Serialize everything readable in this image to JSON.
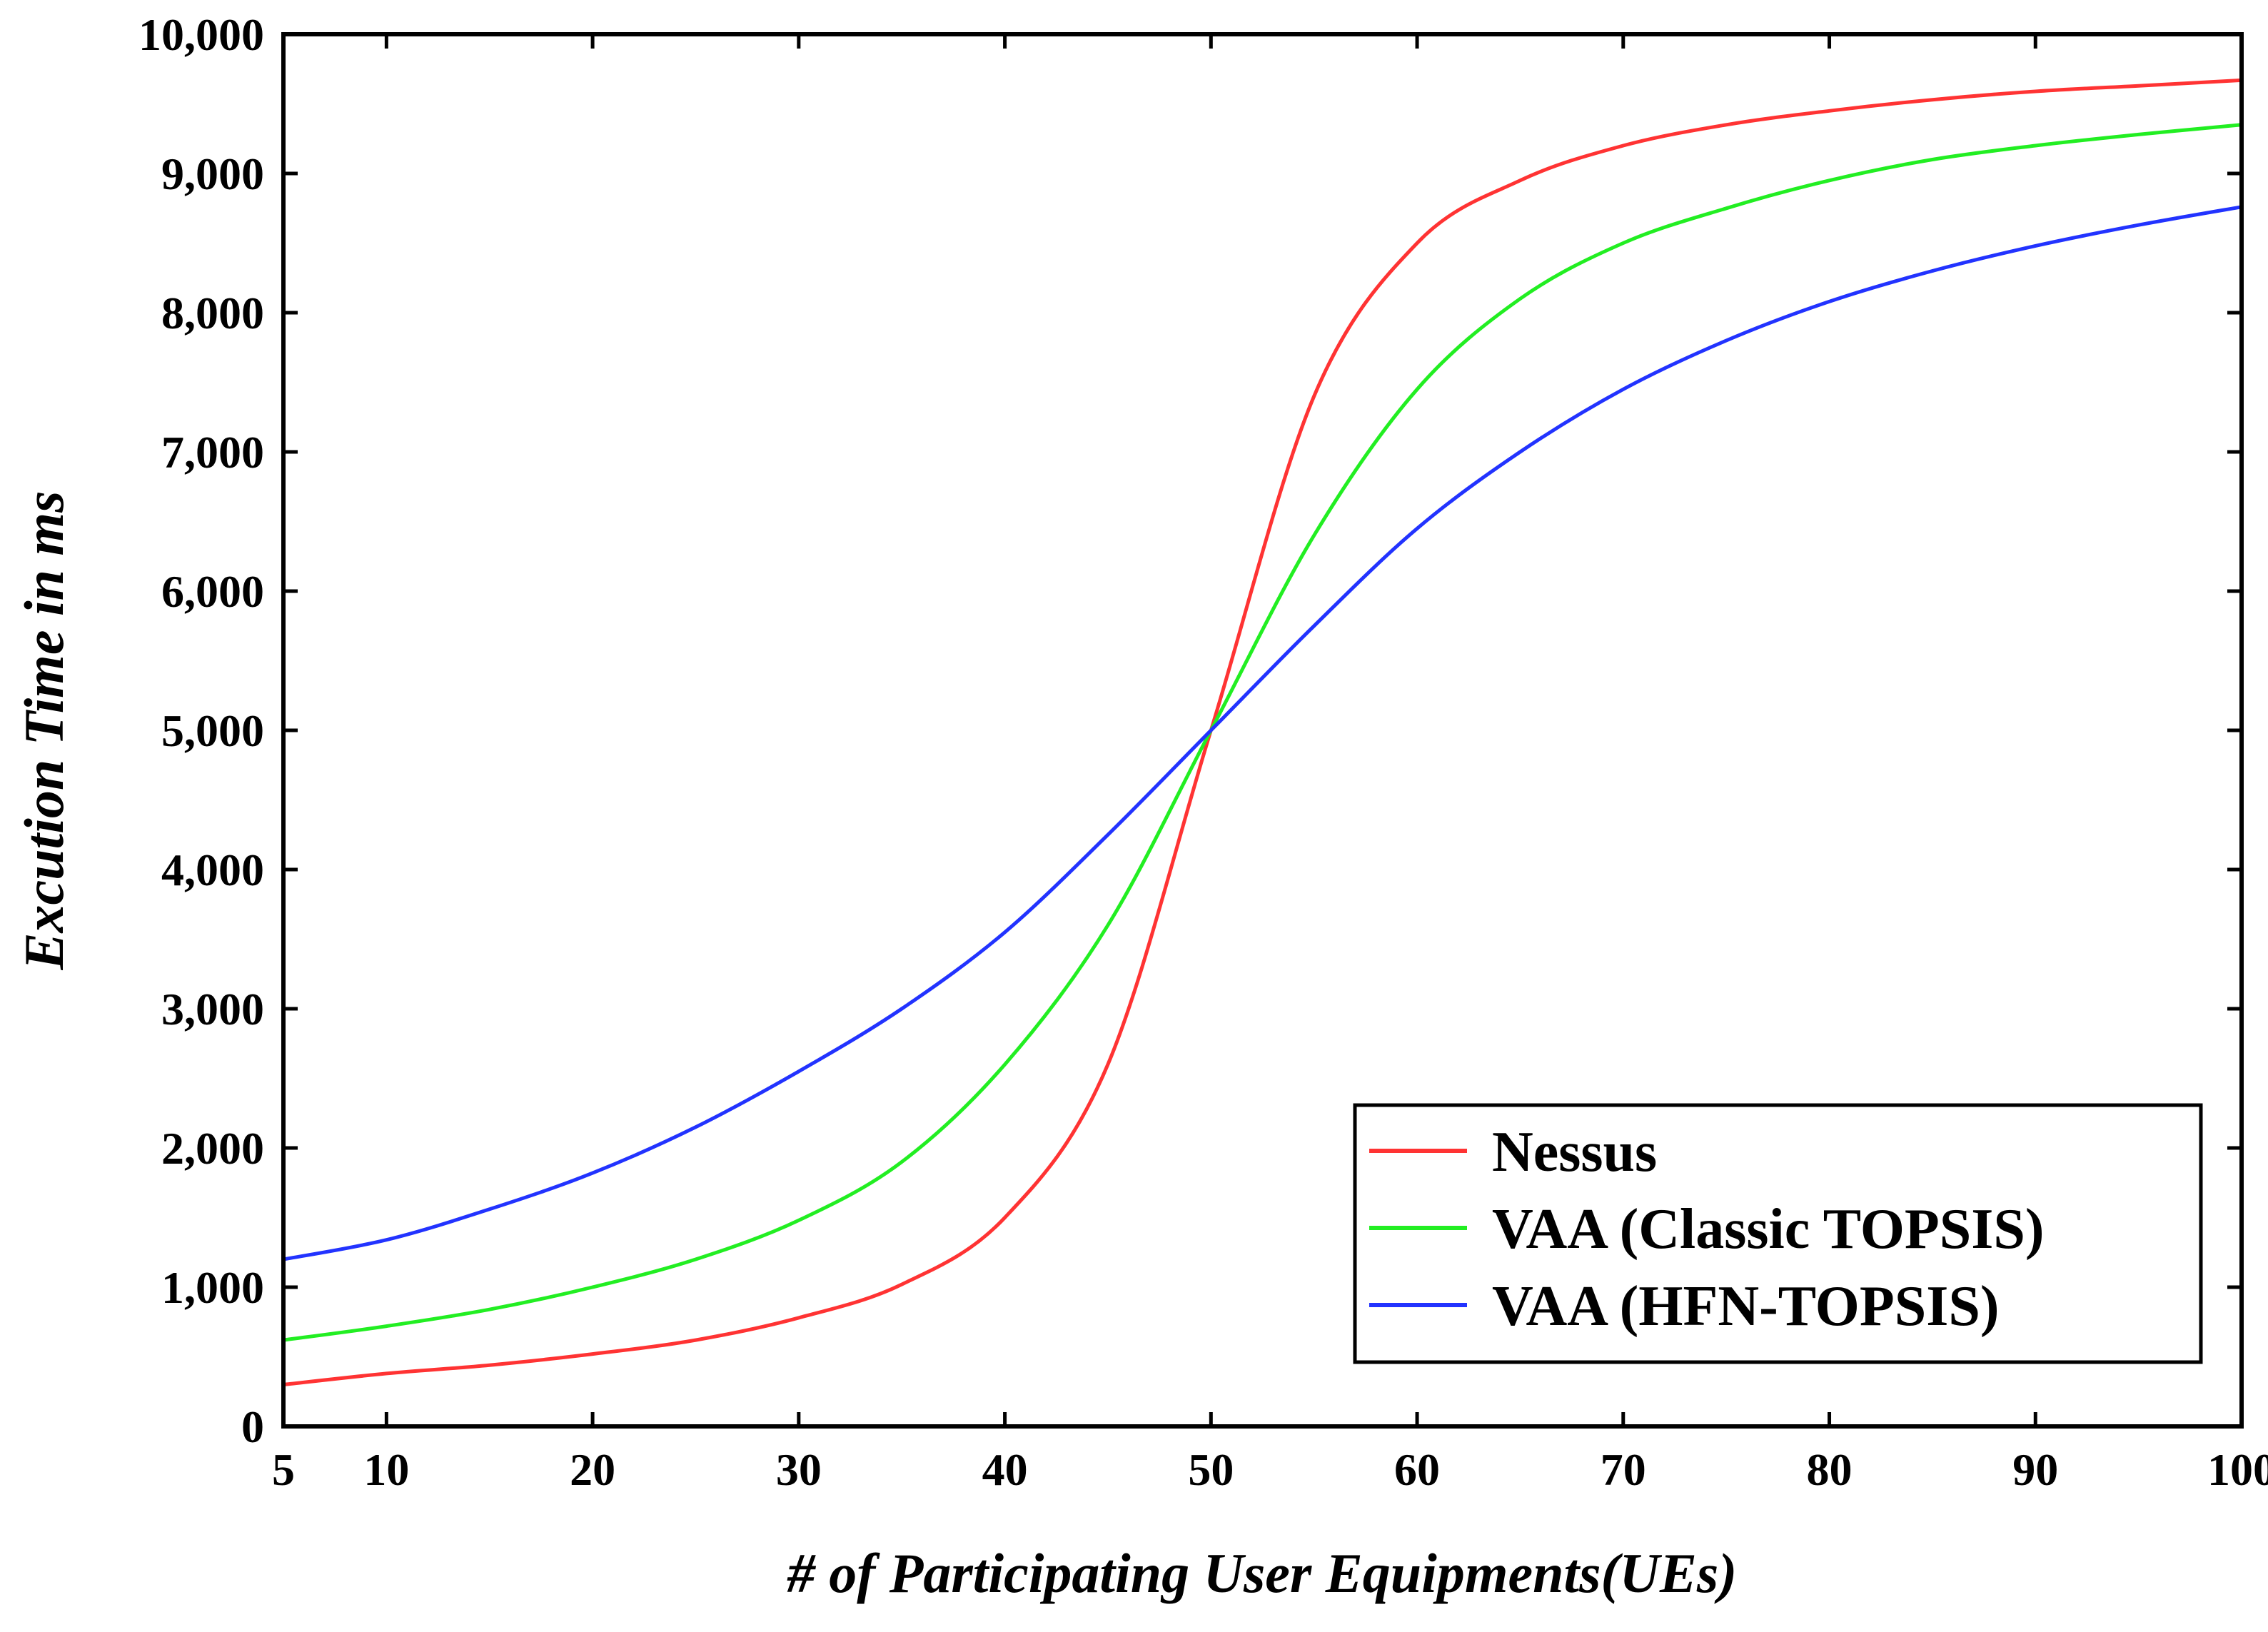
{
  "chart_data": {
    "type": "line",
    "title": "",
    "xlabel": "# of Participating User Equipments(UEs)",
    "ylabel": "Excution Time in ms",
    "xlim": [
      5,
      100
    ],
    "ylim": [
      0,
      10000
    ],
    "x_ticks": [
      5,
      10,
      20,
      30,
      40,
      50,
      60,
      70,
      80,
      90,
      100
    ],
    "x_tick_labels": [
      "5",
      "10",
      "20",
      "30",
      "40",
      "50",
      "60",
      "70",
      "80",
      "90",
      "100"
    ],
    "y_ticks": [
      0,
      1000,
      2000,
      3000,
      4000,
      5000,
      6000,
      7000,
      8000,
      9000,
      10000
    ],
    "y_tick_labels": [
      "0",
      "1,000",
      "2,000",
      "3,000",
      "4,000",
      "5,000",
      "6,000",
      "7,000",
      "8,000",
      "9,000",
      "10,000"
    ],
    "grid": false,
    "legend_position": "bottom-right",
    "x": [
      5,
      10,
      15,
      20,
      25,
      30,
      35,
      40,
      45,
      50,
      55,
      60,
      65,
      70,
      75,
      80,
      85,
      90,
      95,
      100
    ],
    "series": [
      {
        "name": "Nessus",
        "color": "#ff3333",
        "values": [
          300,
          380,
          440,
          520,
          620,
          780,
          1020,
          1500,
          2600,
          5000,
          7400,
          8500,
          8950,
          9200,
          9350,
          9450,
          9530,
          9590,
          9630,
          9670
        ]
      },
      {
        "name": "VAA (Classic TOPSIS)",
        "color": "#22ee22",
        "values": [
          620,
          720,
          840,
          1000,
          1200,
          1480,
          1900,
          2600,
          3600,
          5000,
          6400,
          7450,
          8100,
          8500,
          8750,
          8950,
          9100,
          9200,
          9280,
          9350
        ]
      },
      {
        "name": "VAA (HFN-TOPSIS)",
        "color": "#2233ff",
        "values": [
          1200,
          1340,
          1560,
          1820,
          2150,
          2550,
          3000,
          3550,
          4250,
          5000,
          5750,
          6450,
          7000,
          7450,
          7800,
          8080,
          8300,
          8480,
          8630,
          8760
        ]
      }
    ]
  }
}
